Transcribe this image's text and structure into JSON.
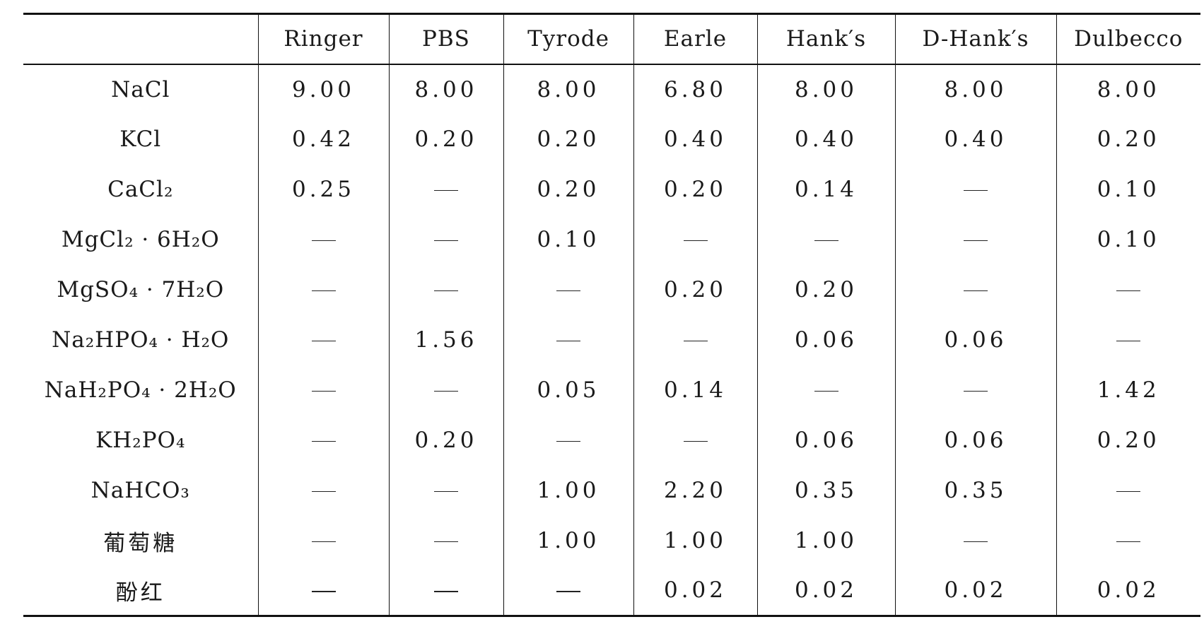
{
  "table": {
    "columns": [
      "",
      "Ringer",
      "PBS",
      "Tyrode",
      "Earle",
      "Hank′s",
      "D-Hank′s",
      "Dulbecco"
    ],
    "rows": [
      {
        "reagent": "NaCl",
        "values": [
          "9.00",
          "8.00",
          "8.00",
          "6.80",
          "8.00",
          "8.00",
          "8.00"
        ]
      },
      {
        "reagent": "KCl",
        "values": [
          "0.42",
          "0.20",
          "0.20",
          "0.40",
          "0.40",
          "0.40",
          "0.20"
        ]
      },
      {
        "reagent": "CaCl₂",
        "values": [
          "0.25",
          "—",
          "0.20",
          "0.20",
          "0.14",
          "—",
          "0.10"
        ]
      },
      {
        "reagent": "MgCl₂ · 6H₂O",
        "values": [
          "—",
          "—",
          "0.10",
          "—",
          "—",
          "—",
          "0.10"
        ]
      },
      {
        "reagent": "MgSO₄ · 7H₂O",
        "values": [
          "—",
          "—",
          "—",
          "0.20",
          "0.20",
          "—",
          "—"
        ]
      },
      {
        "reagent": "Na₂HPO₄ · H₂O",
        "values": [
          "—",
          "1.56",
          "—",
          "—",
          "0.06",
          "0.06",
          "—"
        ]
      },
      {
        "reagent": "NaH₂PO₄ · 2H₂O",
        "values": [
          "—",
          "—",
          "0.05",
          "0.14",
          "—",
          "—",
          "1.42"
        ]
      },
      {
        "reagent": "KH₂PO₄",
        "values": [
          "—",
          "0.20",
          "—",
          "—",
          "0.06",
          "0.06",
          "0.20"
        ]
      },
      {
        "reagent": "NaHCO₃",
        "values": [
          "—",
          "—",
          "1.00",
          "2.20",
          "0.35",
          "0.35",
          "—"
        ]
      },
      {
        "reagent": "葡萄糖",
        "values": [
          "—",
          "—",
          "1.00",
          "1.00",
          "1.00",
          "—",
          "—"
        ]
      },
      {
        "reagent": "酚红",
        "values": [
          "—",
          "—",
          "—",
          "0.02",
          "0.02",
          "0.02",
          "0.02"
        ]
      }
    ]
  }
}
